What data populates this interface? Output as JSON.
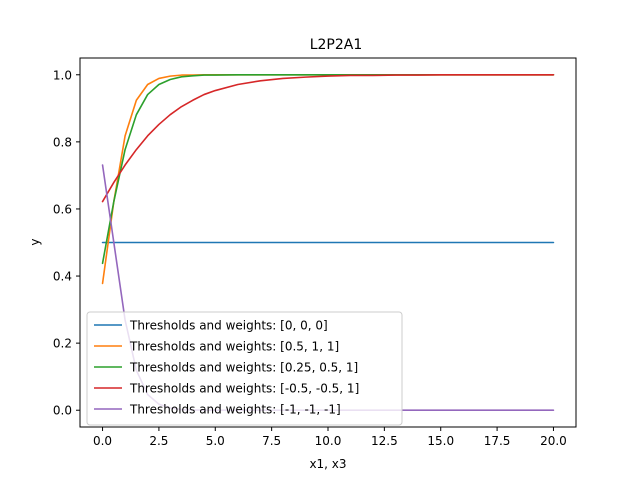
{
  "chart_data": {
    "type": "line",
    "title": "L2P2A1",
    "xlabel": "x1, x3",
    "ylabel": "y",
    "xlim": [
      -1,
      21
    ],
    "ylim": [
      -0.05,
      1.05
    ],
    "xticks": [
      0.0,
      2.5,
      5.0,
      7.5,
      10.0,
      12.5,
      15.0,
      17.5,
      20.0
    ],
    "xtick_labels": [
      "0.0",
      "2.5",
      "5.0",
      "7.5",
      "10.0",
      "12.5",
      "15.0",
      "17.5",
      "20.0"
    ],
    "yticks": [
      0.0,
      0.2,
      0.4,
      0.6,
      0.8,
      1.0
    ],
    "ytick_labels": [
      "0.0",
      "0.2",
      "0.4",
      "0.6",
      "0.8",
      "1.0"
    ],
    "grid": false,
    "legend_position": "lower-left",
    "x": [
      0,
      0.5,
      1,
      1.5,
      2,
      2.5,
      3,
      3.5,
      4,
      4.5,
      5,
      6,
      7,
      8,
      9,
      10,
      11,
      12,
      13,
      14,
      15,
      16,
      17,
      18,
      19,
      20
    ],
    "series": [
      {
        "name": "Thresholds and weights: [0, 0, 0]",
        "color": "#1f77b4",
        "values": [
          0.5,
          0.5,
          0.5,
          0.5,
          0.5,
          0.5,
          0.5,
          0.5,
          0.5,
          0.5,
          0.5,
          0.5,
          0.5,
          0.5,
          0.5,
          0.5,
          0.5,
          0.5,
          0.5,
          0.5,
          0.5,
          0.5,
          0.5,
          0.5,
          0.5,
          0.5
        ]
      },
      {
        "name": "Thresholds and weights: [0.5, 1, 1]",
        "color": "#ff7f0e",
        "values": [
          0.378,
          0.622,
          0.818,
          0.924,
          0.971,
          0.989,
          0.996,
          0.999,
          0.999,
          1.0,
          1.0,
          1.0,
          1.0,
          1.0,
          1.0,
          1.0,
          1.0,
          1.0,
          1.0,
          1.0,
          1.0,
          1.0,
          1.0,
          1.0,
          1.0,
          1.0
        ]
      },
      {
        "name": "Thresholds and weights: [0.25, 0.5, 1]",
        "color": "#2ca02c",
        "values": [
          0.438,
          0.622,
          0.777,
          0.881,
          0.941,
          0.971,
          0.986,
          0.994,
          0.997,
          0.999,
          0.999,
          1.0,
          1.0,
          1.0,
          1.0,
          1.0,
          1.0,
          1.0,
          1.0,
          1.0,
          1.0,
          1.0,
          1.0,
          1.0,
          1.0,
          1.0
        ]
      },
      {
        "name": "Thresholds and weights: [-0.5, -0.5, 1]",
        "color": "#d62728",
        "values": [
          0.622,
          0.679,
          0.731,
          0.777,
          0.818,
          0.852,
          0.881,
          0.905,
          0.924,
          0.941,
          0.953,
          0.971,
          0.982,
          0.989,
          0.993,
          0.996,
          0.998,
          0.998,
          0.999,
          0.999,
          1.0,
          1.0,
          1.0,
          1.0,
          1.0,
          1.0
        ]
      },
      {
        "name": "Thresholds and weights: [-1, -1, -1]",
        "color": "#9467bd",
        "values": [
          0.731,
          0.5,
          0.269,
          0.119,
          0.047,
          0.018,
          0.007,
          0.002,
          0.001,
          0.0,
          0.0,
          0.0,
          0.0,
          0.0,
          0.0,
          0.0,
          0.0,
          0.0,
          0.0,
          0.0,
          0.0,
          0.0,
          0.0,
          0.0,
          0.0,
          0.0
        ]
      }
    ]
  }
}
